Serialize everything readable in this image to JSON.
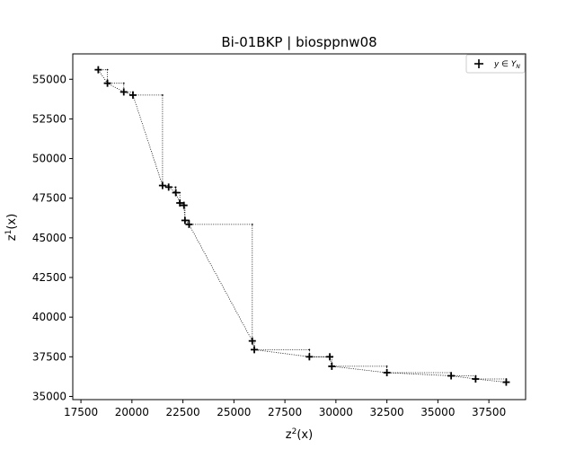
{
  "chart_data": {
    "type": "scatter",
    "title": "Bi-01BKP | biosppnw08",
    "xlabel": "z²(x)",
    "ylabel": "z¹(x)",
    "xlim": [
      17100,
      39300
    ],
    "ylim": [
      34800,
      56600
    ],
    "xticks": [
      17500,
      20000,
      22500,
      25000,
      27500,
      30000,
      32500,
      35000,
      37500
    ],
    "yticks": [
      35000,
      37500,
      40000,
      42500,
      45000,
      47500,
      50000,
      52500,
      55000
    ],
    "grid": false,
    "legend": {
      "placement": "top-right",
      "entries": [
        "y ∈ Y_N"
      ]
    },
    "series": [
      {
        "name": "y ∈ Y_N",
        "marker": "plus",
        "color": "#000000",
        "points": [
          {
            "x": 18350,
            "y": 55600
          },
          {
            "x": 18800,
            "y": 54750
          },
          {
            "x": 19600,
            "y": 54200
          },
          {
            "x": 20050,
            "y": 54000
          },
          {
            "x": 21500,
            "y": 48300
          },
          {
            "x": 21800,
            "y": 48200
          },
          {
            "x": 22150,
            "y": 47850
          },
          {
            "x": 22350,
            "y": 47200
          },
          {
            "x": 22550,
            "y": 47050
          },
          {
            "x": 22600,
            "y": 46100
          },
          {
            "x": 22800,
            "y": 45850
          },
          {
            "x": 25900,
            "y": 38500
          },
          {
            "x": 26000,
            "y": 37950
          },
          {
            "x": 28700,
            "y": 37500
          },
          {
            "x": 29700,
            "y": 37500
          },
          {
            "x": 29800,
            "y": 36900
          },
          {
            "x": 32500,
            "y": 36500
          },
          {
            "x": 35650,
            "y": 36300
          },
          {
            "x": 36850,
            "y": 36100
          },
          {
            "x": 38350,
            "y": 35900
          }
        ]
      }
    ],
    "connector": {
      "style": "dotted",
      "color": "#000000",
      "path": [
        [
          18350,
          55600
        ],
        [
          18800,
          55600
        ],
        [
          18800,
          54750
        ],
        [
          19600,
          54750
        ],
        [
          19600,
          54200
        ],
        [
          20050,
          54200
        ],
        [
          20050,
          54000
        ],
        [
          21500,
          54000
        ],
        [
          21500,
          48300
        ],
        [
          21800,
          48300
        ],
        [
          21800,
          48200
        ],
        [
          22150,
          48200
        ],
        [
          22150,
          47850
        ],
        [
          22350,
          47850
        ],
        [
          22350,
          47200
        ],
        [
          22550,
          47200
        ],
        [
          22550,
          47050
        ],
        [
          22600,
          47050
        ],
        [
          22600,
          46100
        ],
        [
          22800,
          46100
        ],
        [
          22800,
          45850
        ],
        [
          25900,
          45850
        ],
        [
          25900,
          38500
        ],
        [
          26000,
          38500
        ],
        [
          26000,
          37950
        ],
        [
          28700,
          37950
        ],
        [
          28700,
          37500
        ],
        [
          29700,
          37500
        ],
        [
          29700,
          37500
        ],
        [
          29800,
          37500
        ],
        [
          29800,
          36900
        ],
        [
          32500,
          36900
        ],
        [
          32500,
          36500
        ],
        [
          35650,
          36500
        ],
        [
          35650,
          36300
        ],
        [
          36850,
          36300
        ],
        [
          36850,
          36100
        ],
        [
          38350,
          36100
        ],
        [
          38350,
          35900
        ]
      ],
      "hull": [
        [
          18350,
          55600
        ],
        [
          18800,
          54750
        ],
        [
          19600,
          54200
        ],
        [
          20050,
          54000
        ],
        [
          21500,
          48300
        ],
        [
          21800,
          48200
        ],
        [
          22150,
          47850
        ],
        [
          22350,
          47200
        ],
        [
          22550,
          47050
        ],
        [
          22600,
          46100
        ],
        [
          22800,
          45850
        ],
        [
          25900,
          38500
        ],
        [
          26000,
          37950
        ],
        [
          28700,
          37500
        ],
        [
          29700,
          37500
        ],
        [
          29800,
          36900
        ],
        [
          32500,
          36500
        ],
        [
          35650,
          36300
        ],
        [
          36850,
          36100
        ],
        [
          38350,
          35900
        ]
      ]
    }
  }
}
